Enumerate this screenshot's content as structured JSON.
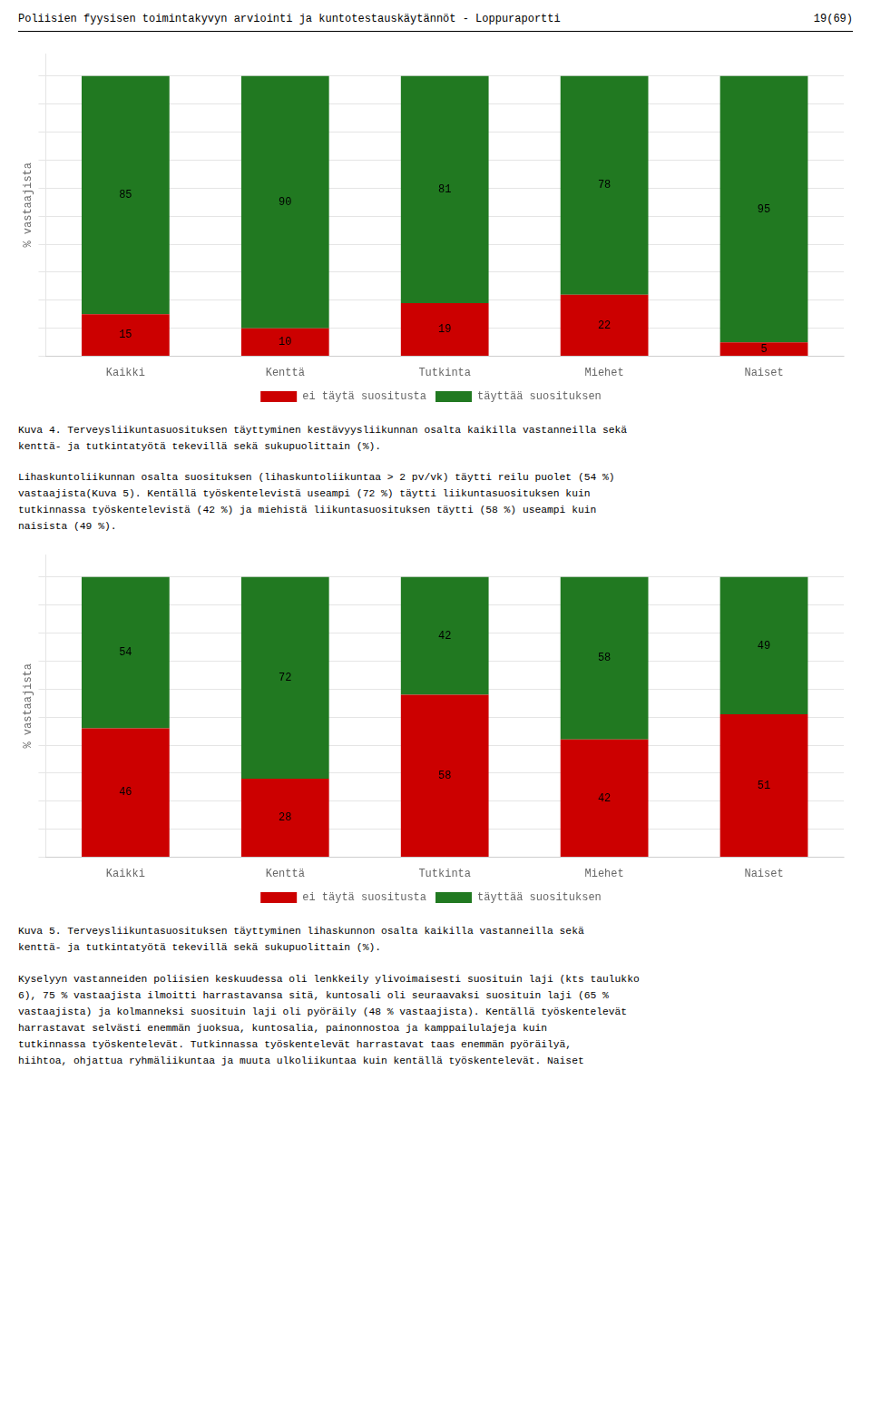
{
  "chart_data": [
    {
      "type": "bar",
      "stacked": true,
      "categories": [
        "Kaikki",
        "Kenttä",
        "Tutkinta",
        "Miehet",
        "Naiset"
      ],
      "series": [
        {
          "name": "ei täytä suositusta",
          "color": "#CC0000",
          "values": [
            15,
            10,
            19,
            22,
            5
          ]
        },
        {
          "name": "täyttää suosituksen",
          "color": "#217921",
          "values": [
            85,
            90,
            81,
            78,
            95
          ]
        }
      ],
      "ylabel": "% vastaajista",
      "ylim": [
        0,
        108
      ],
      "yticks": [
        0,
        10,
        20,
        30,
        40,
        50,
        60,
        70,
        80,
        90,
        100
      ],
      "grid": true,
      "tick_labels": "x",
      "data_labels": true,
      "legend": "bottom"
    },
    {
      "type": "bar",
      "stacked": true,
      "categories": [
        "Kaikki",
        "Kenttä",
        "Tutkinta",
        "Miehet",
        "Naiset"
      ],
      "series": [
        {
          "name": "ei täytä suositusta",
          "color": "#CC0000",
          "values": [
            46,
            28,
            58,
            42,
            51
          ]
        },
        {
          "name": "täyttää suosituksen",
          "color": "#217921",
          "values": [
            54,
            72,
            42,
            58,
            49
          ]
        }
      ],
      "ylabel": "% vastaajista",
      "ylim": [
        0,
        108
      ],
      "yticks": [
        0,
        10,
        20,
        30,
        40,
        50,
        60,
        70,
        80,
        90,
        100
      ],
      "grid": true,
      "tick_labels": "x",
      "data_labels": true,
      "legend": "bottom"
    }
  ],
  "header_text": "Poliisien fyysisen toimintakyvyn arviointi ja kuntotestauskäytännöt - Loppuraportti",
  "header_right": "19(69)",
  "text1": "Kuva 4. Terveysliikuntasuosituksen täyttyminen kestävyysliikunnan osalta kaikilla vastanneilla sekä\nkenttä- ja tutkintatyötä tekevillä sekä sukupuolittain (%).",
  "text2": "Lihaskuntoliikunnan osalta suosituksen (lihaskuntoliikuntaa > 2 pv/vk) täytti reilu puolet (54 %)\nvastaajista(Kuva 5). Kentällä työskentelevistä useampi (72 %) täytti liikuntasuosituksen kuin\ntutkinnassa työskentelevistä (42 %) ja miehistä liikuntasuosituksen täytti (58 %) useampi kuin\nnaisista (49 %).",
  "text3": "Kuva 5. Terveysliikuntasuosituksen täyttyminen lihaskunnon osalta kaikilla vastanneilla sekä\nkenttä- ja tutkintatyötä tekevillä sekä sukupuolittain (%).",
  "text4": "Kyselyyn vastanneiden poliisien keskuudessa oli lenkkeily ylivoimaisesti suosituin laji (kts taulukko\n6), 75 % vastaajista ilmoitti harrastavansa sitä, kuntosali oli seuraavaksi suosituin laji (65 %\nvastaajista) ja kolmanneksi suosituin laji oli pyöräily (48 % vastaajista). Kentällä työskentelevät\nharrastavat selvästi enemmän juoksua, kuntosalia, painonnostoa ja kamppailulajeja kuin\ntutkinnassa työskentelevät. Tutkinnassa työskentelevät harrastavat taas enemmän pyöräilyä,\nhiihtoa, ohjattua ryhmäliikuntaa ja muuta ulkoliikuntaa kuin kentällä työskentelevät. Naiset"
}
